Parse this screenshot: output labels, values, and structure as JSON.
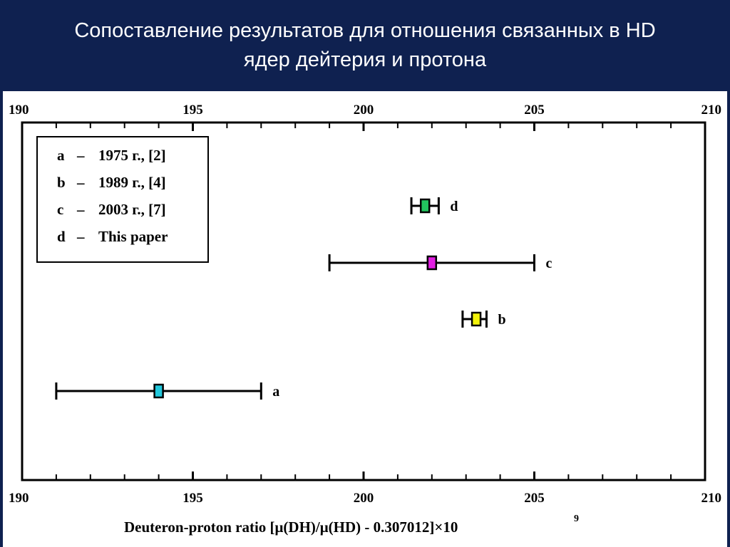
{
  "slide": {
    "title_line1": "Сопоставление результатов для отношения связанных в HD",
    "title_line2": "ядер дейтерия и протона",
    "colors": {
      "title_bg": "#0f2150",
      "title_text": "#ffffff"
    }
  },
  "chart_data": {
    "type": "scatter",
    "title": "",
    "xlabel": "Deuteron-proton ratio [μ(DH)/μ(HD) - 0.307012]×10",
    "xlabel_exponent": "9",
    "ylabel": "",
    "xlim": [
      190,
      210
    ],
    "xticks": [
      190,
      195,
      200,
      205,
      210
    ],
    "tick_labels": [
      "190",
      "195",
      "200",
      "205",
      "210"
    ],
    "grid": false,
    "legend_position": "top-left",
    "legend": [
      {
        "key": "a",
        "dash": "–",
        "text": "1975 г., [2]"
      },
      {
        "key": "b",
        "dash": "–",
        "text": "1989 г., [4]"
      },
      {
        "key": "c",
        "dash": "–",
        "text": "2003 г., [7]"
      },
      {
        "key": "d",
        "dash": "–",
        "text": "This paper"
      }
    ],
    "points": [
      {
        "label": "d",
        "x": 201.8,
        "xmin": 201.4,
        "xmax": 202.2,
        "color": "#22c55e"
      },
      {
        "label": "c",
        "x": 202.0,
        "xmin": 199.0,
        "xmax": 205.0,
        "color": "#e01ee0"
      },
      {
        "label": "b",
        "x": 203.3,
        "xmin": 202.9,
        "xmax": 203.6,
        "color": "#f2f20a"
      },
      {
        "label": "a",
        "x": 194.0,
        "xmin": 191.0,
        "xmax": 197.0,
        "color": "#22c8dc"
      }
    ]
  }
}
